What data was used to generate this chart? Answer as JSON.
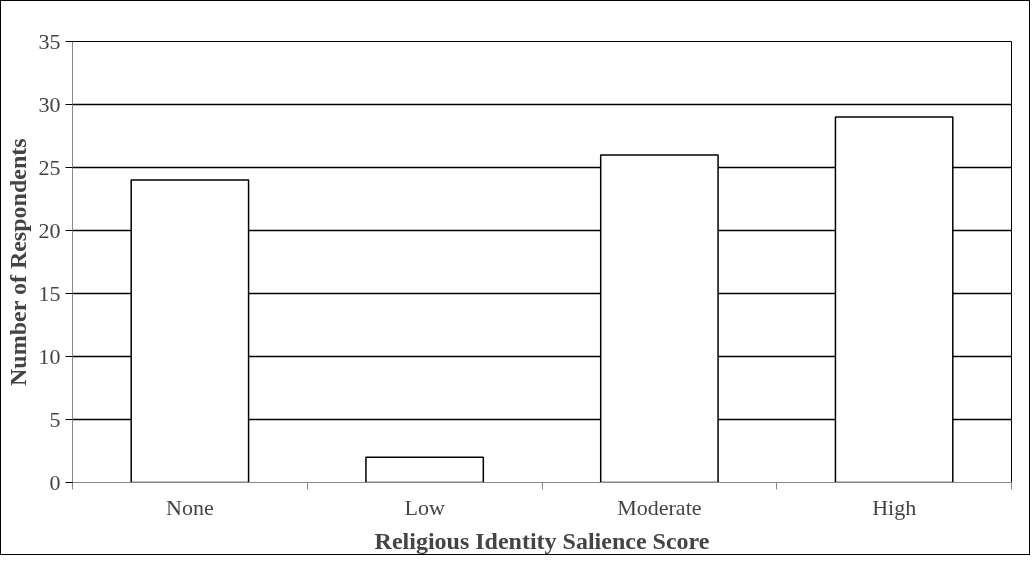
{
  "chart_data": {
    "type": "bar",
    "xlabel": "Religious Identity Salience Score",
    "ylabel": "Number of Respondents",
    "categories": [
      "None",
      "Low",
      "Moderate",
      "High"
    ],
    "values": [
      24,
      2,
      26,
      29
    ],
    "color": "#ffffff",
    "ylim": [
      0,
      35
    ],
    "yticks": [
      0,
      5,
      10,
      15,
      20,
      25,
      30,
      35
    ],
    "grid": "y"
  }
}
